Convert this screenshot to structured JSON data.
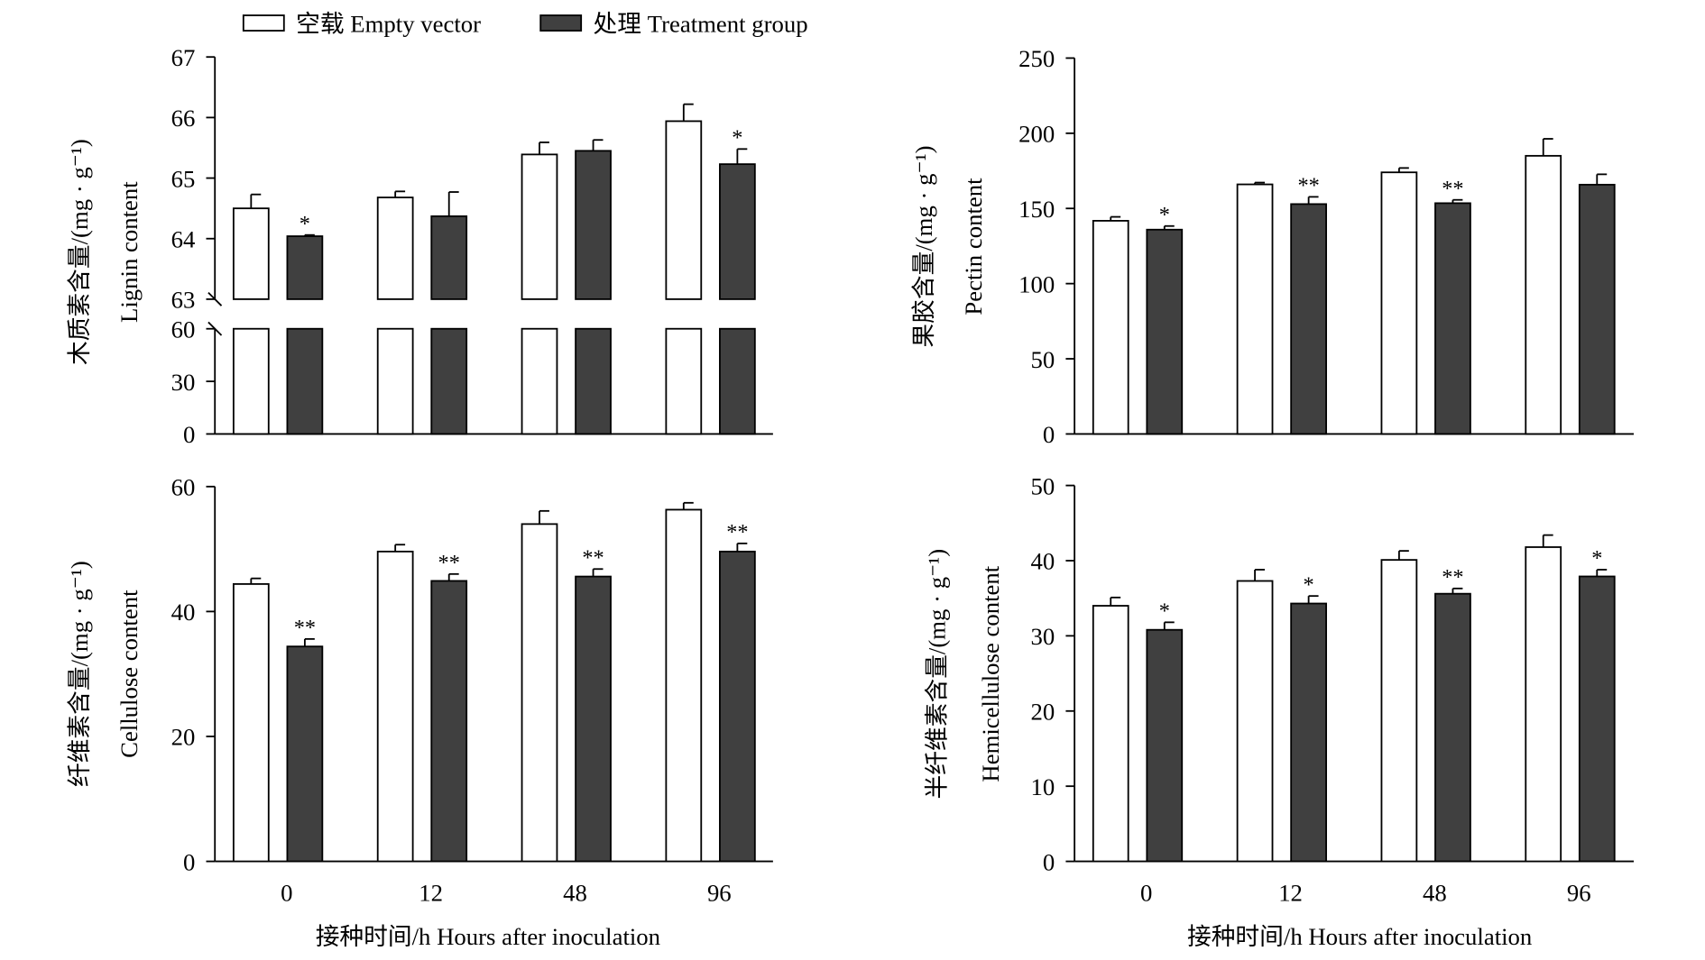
{
  "legend": {
    "empty": "空载 Empty vector",
    "treat": "处理 Treatment group"
  },
  "colors": {
    "empty": "#ffffff",
    "treat": "#404040",
    "stroke": "#000000"
  },
  "chart_data": [
    {
      "type": "bar",
      "panel": "lignin",
      "ylabel_cn": "木质素含量/(mg · g⁻¹)",
      "ylabel_en": "Lignin content",
      "categories": [
        "0",
        "12",
        "48",
        "96"
      ],
      "yaxis_break": true,
      "yticks_lower": [
        "0",
        "30",
        "60"
      ],
      "yticks_upper": [
        "63",
        "64",
        "65",
        "66",
        "67"
      ],
      "ylim_lower": [
        0,
        60
      ],
      "ylim_upper": [
        63,
        67
      ],
      "series": [
        {
          "name": "空载 Empty vector",
          "values": [
            64.5,
            64.68,
            65.39,
            65.94
          ],
          "errors": [
            0.23,
            0.1,
            0.2,
            0.28
          ],
          "sig": [
            "",
            "",
            "",
            ""
          ]
        },
        {
          "name": "处理 Treatment group",
          "values": [
            64.04,
            64.37,
            65.45,
            65.23
          ],
          "errors": [
            0.02,
            0.4,
            0.18,
            0.25
          ],
          "sig": [
            "*",
            "",
            "",
            "*"
          ]
        }
      ]
    },
    {
      "type": "bar",
      "panel": "pectin",
      "ylabel_cn": "果胶含量/(mg · g⁻¹)",
      "ylabel_en": "Pectin content",
      "categories": [
        "",
        "",
        "",
        ""
      ],
      "yticks": [
        "0",
        "50",
        "100",
        "150",
        "200",
        "250"
      ],
      "ylim": [
        0,
        250
      ],
      "series": [
        {
          "name": "空载 Empty vector",
          "values": [
            141.8,
            166,
            174,
            185
          ],
          "errors": [
            2.6,
            1.2,
            2.9,
            11.3
          ],
          "sig": [
            "",
            "",
            "",
            ""
          ]
        },
        {
          "name": "处理 Treatment group",
          "values": [
            135.9,
            152.9,
            153.5,
            165.8
          ],
          "errors": [
            2.4,
            4.8,
            2.2,
            6.9
          ],
          "sig": [
            "*",
            "**",
            "**",
            ""
          ]
        }
      ]
    },
    {
      "type": "bar",
      "panel": "cellulose",
      "ylabel_cn": "纤维素含量/(mg · g⁻¹)",
      "ylabel_en": "Cellulose content",
      "categories": [
        "0",
        "12",
        "48",
        "96"
      ],
      "xlabel": "接种时间/h  Hours after inoculation",
      "yticks": [
        "0",
        "20",
        "40",
        "60"
      ],
      "ylim": [
        0,
        60
      ],
      "series": [
        {
          "name": "空载 Empty vector",
          "values": [
            44.4,
            49.6,
            54,
            56.3
          ],
          "errors": [
            0.9,
            1.1,
            2.1,
            1.1
          ],
          "sig": [
            "",
            "",
            "",
            ""
          ]
        },
        {
          "name": "处理 Treatment group",
          "values": [
            34.4,
            44.9,
            45.6,
            49.6
          ],
          "errors": [
            1.2,
            1.1,
            1.2,
            1.3
          ],
          "sig": [
            "**",
            "**",
            "**",
            "**"
          ]
        }
      ]
    },
    {
      "type": "bar",
      "panel": "hemicellulose",
      "ylabel_cn": "半纤维素含量/(mg · g⁻¹)",
      "ylabel_en": "Hemicellulose content",
      "categories": [
        "0",
        "12",
        "48",
        "96"
      ],
      "xlabel": "接种时间/h  Hours after inoculation",
      "yticks": [
        "0",
        "10",
        "20",
        "30",
        "40",
        "50"
      ],
      "ylim": [
        0,
        50
      ],
      "series": [
        {
          "name": "空载 Empty vector",
          "values": [
            34,
            37.3,
            40.1,
            41.8
          ],
          "errors": [
            1.1,
            1.5,
            1.2,
            1.6
          ],
          "sig": [
            "",
            "",
            "",
            ""
          ]
        },
        {
          "name": "处理 Treatment group",
          "values": [
            30.8,
            34.3,
            35.6,
            37.9
          ],
          "errors": [
            1.0,
            1.0,
            0.7,
            0.9
          ],
          "sig": [
            "*",
            "*",
            "**",
            "*"
          ]
        }
      ]
    }
  ]
}
